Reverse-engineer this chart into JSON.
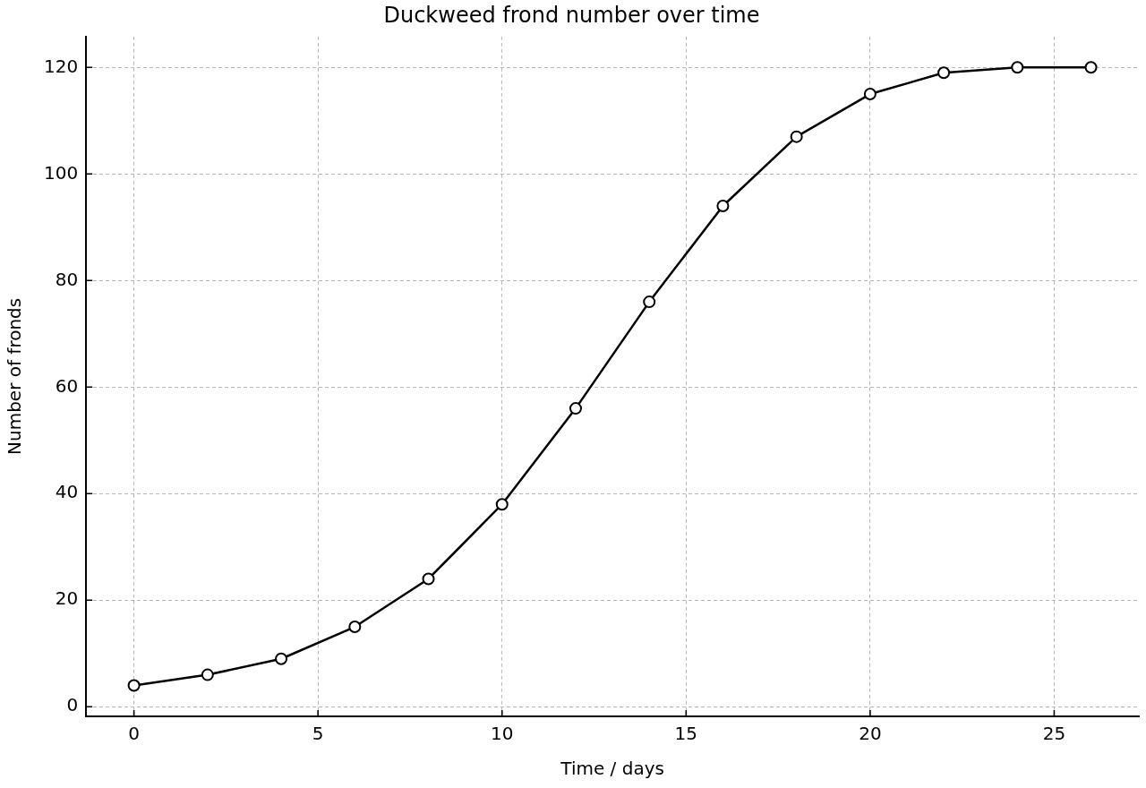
{
  "chart_data": {
    "type": "line",
    "title": "Duckweed frond number over time",
    "xlabel": "Time / days",
    "ylabel": "Number of fronds",
    "x": [
      0,
      2,
      4,
      6,
      8,
      10,
      12,
      14,
      16,
      18,
      20,
      22,
      24,
      26
    ],
    "series": [
      {
        "color": "#000000",
        "values": [
          4,
          6,
          9,
          15,
          24,
          38,
          56,
          76,
          94,
          107,
          115,
          119,
          120,
          120
        ]
      }
    ],
    "xlim": [
      -1.3,
      27.3
    ],
    "ylim": [
      -1.8,
      125.8
    ],
    "xticks": [
      0,
      5,
      10,
      15,
      20,
      25
    ],
    "yticks": [
      0,
      20,
      40,
      60,
      80,
      100,
      120
    ],
    "grid": true,
    "marker": "circle",
    "line_style": "solid"
  }
}
